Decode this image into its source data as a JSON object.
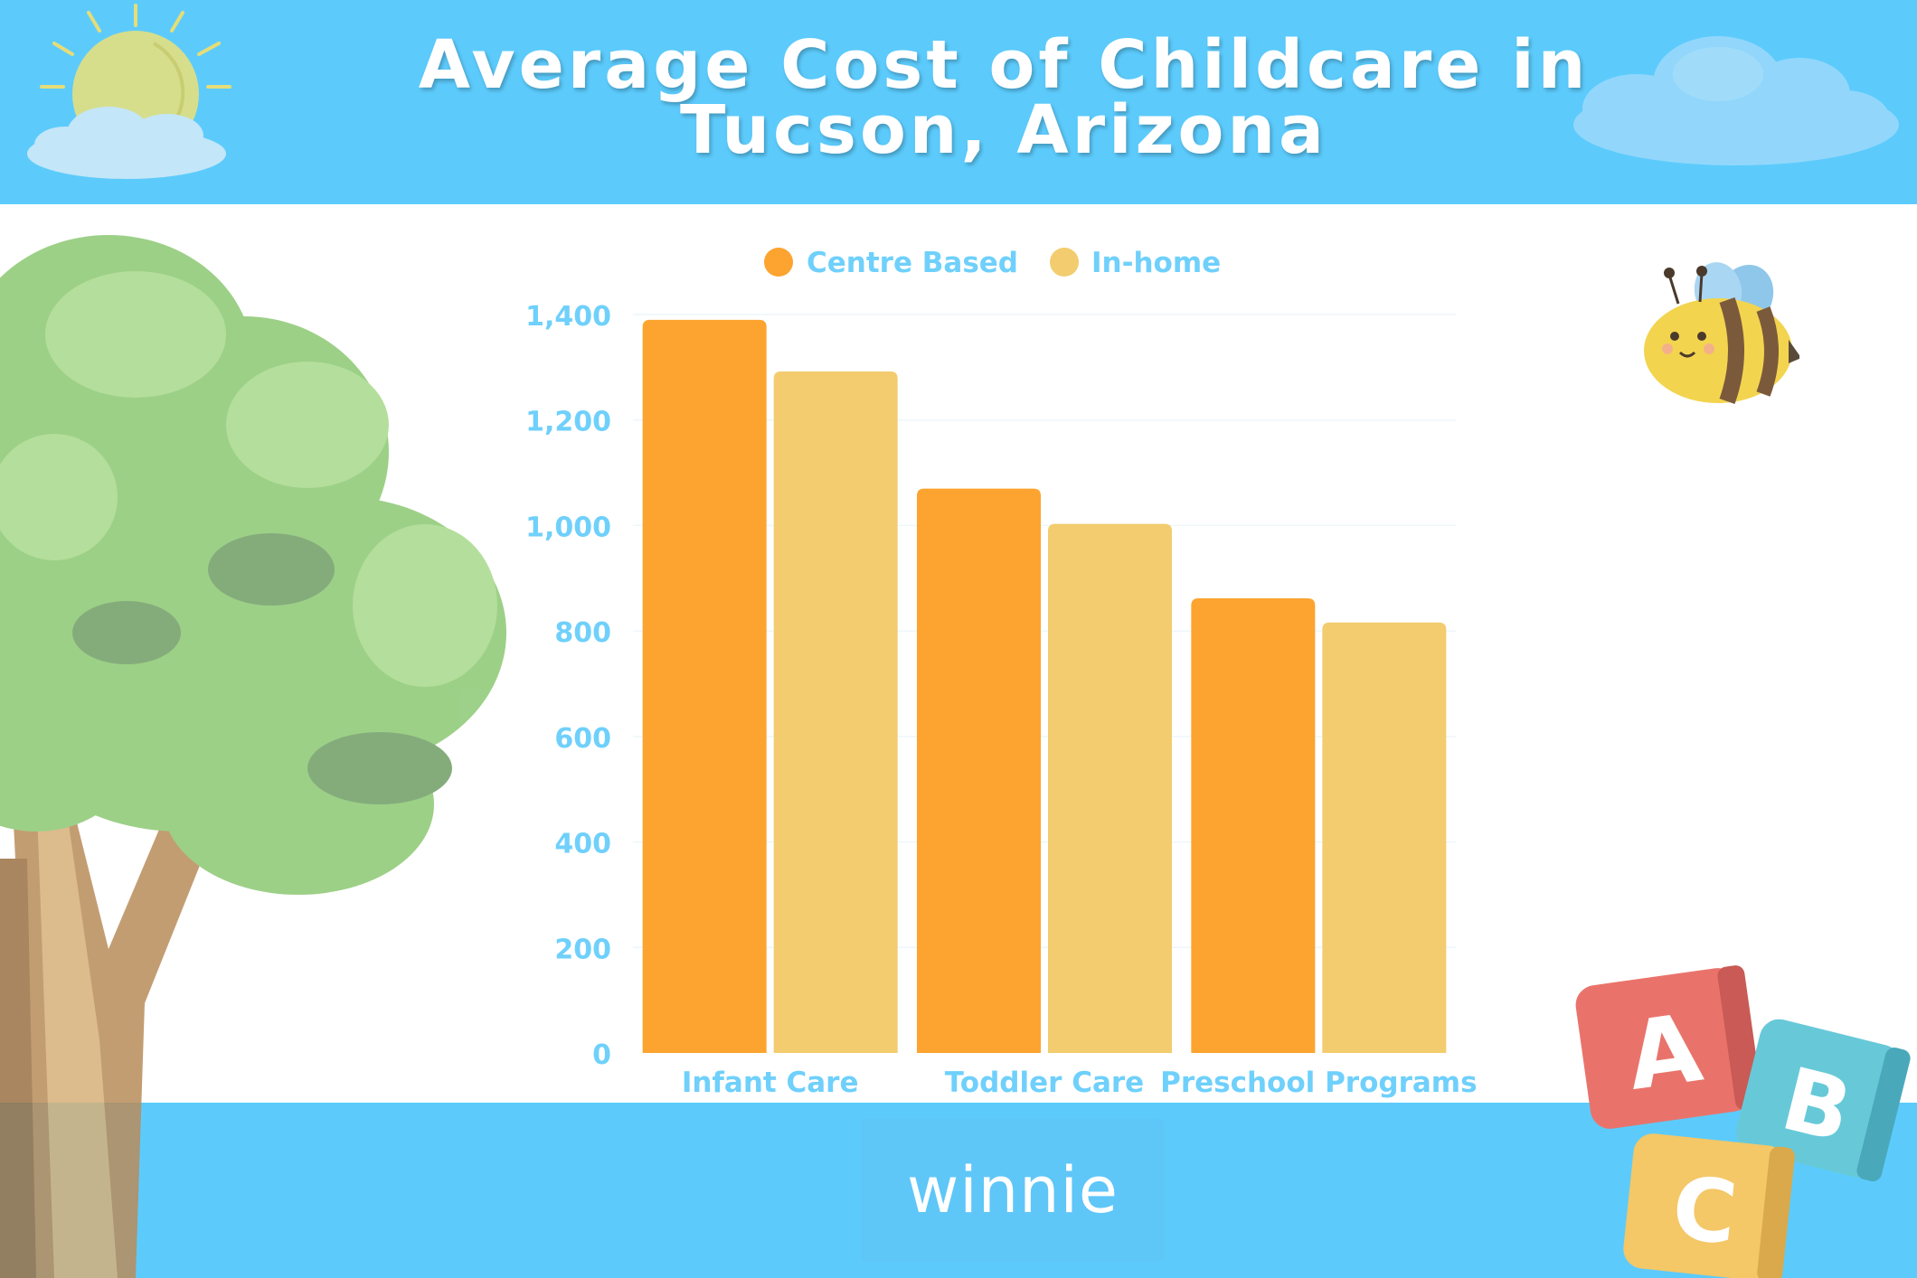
{
  "header": {
    "title_line1": "Average Cost of Childcare in",
    "title_line2": "Tucson, Arizona"
  },
  "footer": {
    "brand": "winnie"
  },
  "colors": {
    "header_bg": "#5ccbfc",
    "centre_based": "#fca42f",
    "in_home": "#f2cc6e",
    "axis_text": "#6fd0fb"
  },
  "icons": [
    "sun-icon",
    "cloud-icon",
    "tree-icon",
    "bee-icon",
    "abc-blocks-icon"
  ],
  "chart_data": {
    "type": "bar",
    "title": "Average Cost of Childcare in Tucson, Arizona",
    "categories": [
      "Infant Care",
      "Toddler Care",
      "Preschool Programs"
    ],
    "series": [
      {
        "name": "Centre Based",
        "values": [
          1390,
          1070,
          862
        ]
      },
      {
        "name": "In-home",
        "values": [
          1292,
          1003,
          816
        ]
      }
    ],
    "ylim": [
      0,
      1400
    ],
    "yticks": [
      "0",
      "200",
      "400",
      "600",
      "800",
      "1,000",
      "1,200",
      "1,400"
    ],
    "ytick_values": [
      0,
      200,
      400,
      600,
      800,
      1000,
      1200,
      1400
    ],
    "grid": true,
    "legend": "top-center"
  }
}
